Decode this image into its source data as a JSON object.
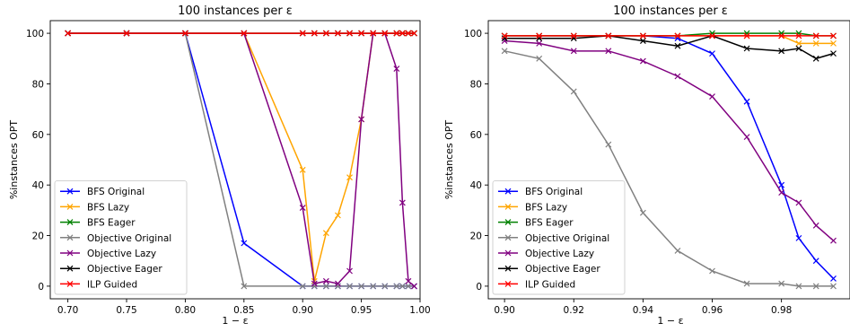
{
  "chart_data": [
    {
      "type": "line",
      "title": "100 instances per ε",
      "xlabel": "1 − ε",
      "ylabel": "%instances OPT",
      "xlim": [
        0.685,
        1.0
      ],
      "ylim": [
        -5,
        105
      ],
      "xticks": [
        0.7,
        0.75,
        0.8,
        0.85,
        0.9,
        0.95,
        1.0
      ],
      "xtick_labels": [
        "0.70",
        "0.75",
        "0.80",
        "0.85",
        "0.90",
        "0.95",
        "1.00"
      ],
      "yticks": [
        0,
        20,
        40,
        60,
        80,
        100
      ],
      "ytick_labels": [
        "0",
        "20",
        "40",
        "60",
        "80",
        "100"
      ],
      "legend_position": "lower-left",
      "grid": false,
      "series": [
        {
          "name": "BFS Original",
          "color": "#0000ff",
          "x": [
            0.7,
            0.75,
            0.8,
            0.85,
            0.9,
            0.91,
            0.92,
            0.93,
            0.94,
            0.95,
            0.96,
            0.97,
            0.98,
            0.985,
            0.99,
            0.995
          ],
          "y": [
            100,
            100,
            100,
            17,
            0,
            0,
            0,
            0,
            0,
            0,
            0,
            0,
            0,
            0,
            0,
            0
          ]
        },
        {
          "name": "BFS Lazy",
          "color": "#ffa500",
          "x": [
            0.7,
            0.75,
            0.8,
            0.85,
            0.9,
            0.91,
            0.92,
            0.93,
            0.94,
            0.95,
            0.96,
            0.97,
            0.98,
            0.985,
            0.99,
            0.995
          ],
          "y": [
            100,
            100,
            100,
            100,
            46,
            2,
            21,
            28,
            43,
            66,
            100,
            100,
            100,
            100,
            100,
            100
          ]
        },
        {
          "name": "BFS Eager",
          "color": "#008000",
          "x": [
            0.7,
            0.75,
            0.8,
            0.85,
            0.9,
            0.91,
            0.92,
            0.93,
            0.94,
            0.95,
            0.96,
            0.97,
            0.98,
            0.985,
            0.99,
            0.995
          ],
          "y": [
            100,
            100,
            100,
            100,
            100,
            100,
            100,
            100,
            100,
            100,
            100,
            100,
            100,
            100,
            100,
            100
          ]
        },
        {
          "name": "Objective Original",
          "color": "#808080",
          "x": [
            0.7,
            0.75,
            0.8,
            0.85,
            0.9,
            0.91,
            0.92,
            0.93,
            0.94,
            0.95,
            0.96,
            0.97,
            0.98,
            0.985,
            0.99,
            0.995
          ],
          "y": [
            100,
            100,
            100,
            0,
            0,
            0,
            0,
            0,
            0,
            0,
            0,
            0,
            0,
            0,
            0,
            0
          ]
        },
        {
          "name": "Objective Lazy",
          "color": "#800080",
          "x": [
            0.7,
            0.75,
            0.8,
            0.85,
            0.9,
            0.91,
            0.92,
            0.93,
            0.94,
            0.95,
            0.96,
            0.97,
            0.98,
            0.985,
            0.99,
            0.995
          ],
          "y": [
            100,
            100,
            100,
            100,
            31,
            1,
            2,
            1,
            6,
            66,
            100,
            100,
            86,
            33,
            2,
            0
          ]
        },
        {
          "name": "Objective Eager",
          "color": "#000000",
          "x": [
            0.7,
            0.75,
            0.8,
            0.85,
            0.9,
            0.91,
            0.92,
            0.93,
            0.94,
            0.95,
            0.96,
            0.97,
            0.98,
            0.985,
            0.99,
            0.995
          ],
          "y": [
            100,
            100,
            100,
            100,
            100,
            100,
            100,
            100,
            100,
            100,
            100,
            100,
            100,
            100,
            100,
            100
          ]
        },
        {
          "name": "ILP Guided",
          "color": "#ff0000",
          "x": [
            0.7,
            0.75,
            0.8,
            0.85,
            0.9,
            0.91,
            0.92,
            0.93,
            0.94,
            0.95,
            0.96,
            0.97,
            0.98,
            0.985,
            0.99,
            0.995
          ],
          "y": [
            100,
            100,
            100,
            100,
            100,
            100,
            100,
            100,
            100,
            100,
            100,
            100,
            100,
            100,
            100,
            100
          ]
        }
      ]
    },
    {
      "type": "line",
      "title": "100 instances per ε",
      "xlabel": "1 − ε",
      "ylabel": "%instances OPT",
      "xlim": [
        0.8953,
        0.9998
      ],
      "ylim": [
        -5,
        105
      ],
      "xticks": [
        0.9,
        0.92,
        0.94,
        0.96,
        0.98
      ],
      "xtick_labels": [
        "0.90",
        "0.92",
        "0.94",
        "0.96",
        "0.98"
      ],
      "yticks": [
        0,
        20,
        40,
        60,
        80,
        100
      ],
      "ytick_labels": [
        "0",
        "20",
        "40",
        "60",
        "80",
        "100"
      ],
      "legend_position": "lower-left",
      "grid": false,
      "series": [
        {
          "name": "BFS Original",
          "color": "#0000ff",
          "x": [
            0.9,
            0.91,
            0.92,
            0.93,
            0.94,
            0.95,
            0.96,
            0.97,
            0.98,
            0.985,
            0.99,
            0.995
          ],
          "y": [
            99,
            99,
            99,
            99,
            99,
            98,
            92,
            73,
            40,
            19,
            10,
            3
          ]
        },
        {
          "name": "BFS Lazy",
          "color": "#ffa500",
          "x": [
            0.9,
            0.91,
            0.92,
            0.93,
            0.94,
            0.95,
            0.96,
            0.97,
            0.98,
            0.985,
            0.99,
            0.995
          ],
          "y": [
            99,
            99,
            99,
            99,
            99,
            99,
            99,
            99,
            99,
            96,
            96,
            96
          ]
        },
        {
          "name": "BFS Eager",
          "color": "#008000",
          "x": [
            0.9,
            0.91,
            0.92,
            0.93,
            0.94,
            0.95,
            0.96,
            0.97,
            0.98,
            0.985,
            0.99,
            0.995
          ],
          "y": [
            99,
            99,
            99,
            99,
            99,
            99,
            100,
            100,
            100,
            100,
            99,
            99
          ]
        },
        {
          "name": "Objective Original",
          "color": "#808080",
          "x": [
            0.9,
            0.91,
            0.92,
            0.93,
            0.94,
            0.95,
            0.96,
            0.97,
            0.98,
            0.985,
            0.99,
            0.995
          ],
          "y": [
            93,
            90,
            77,
            56,
            29,
            14,
            6,
            1,
            1,
            0,
            0,
            0
          ]
        },
        {
          "name": "Objective Lazy",
          "color": "#800080",
          "x": [
            0.9,
            0.91,
            0.92,
            0.93,
            0.94,
            0.95,
            0.96,
            0.97,
            0.98,
            0.985,
            0.99,
            0.995
          ],
          "y": [
            97,
            96,
            93,
            93,
            89,
            83,
            75,
            59,
            37,
            33,
            24,
            18
          ]
        },
        {
          "name": "Objective Eager",
          "color": "#000000",
          "x": [
            0.9,
            0.91,
            0.92,
            0.93,
            0.94,
            0.95,
            0.96,
            0.97,
            0.98,
            0.985,
            0.99,
            0.995
          ],
          "y": [
            98,
            98,
            98,
            99,
            97,
            95,
            99,
            94,
            93,
            94,
            90,
            92
          ]
        },
        {
          "name": "ILP Guided",
          "color": "#ff0000",
          "x": [
            0.9,
            0.91,
            0.92,
            0.93,
            0.94,
            0.95,
            0.96,
            0.97,
            0.98,
            0.985,
            0.99,
            0.995
          ],
          "y": [
            99,
            99,
            99,
            99,
            99,
            99,
            99,
            99,
            99,
            99,
            99,
            99
          ]
        }
      ]
    }
  ]
}
